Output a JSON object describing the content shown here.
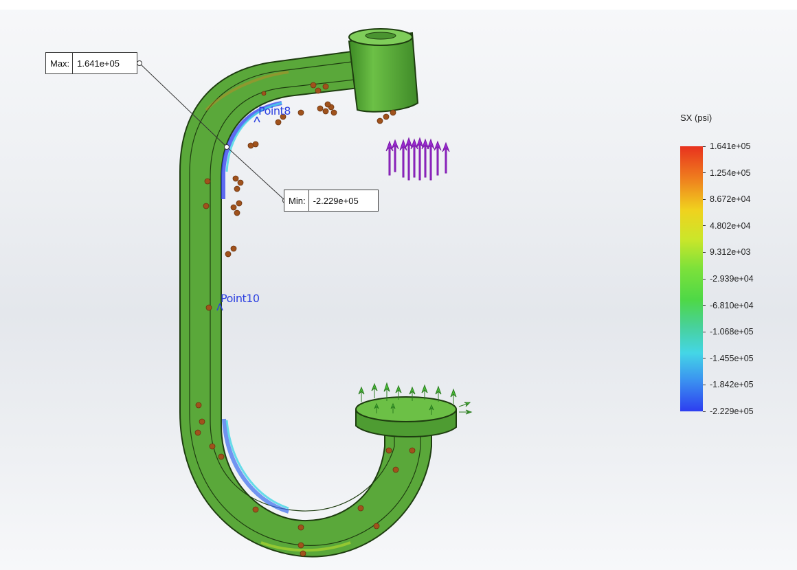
{
  "probes": {
    "max": {
      "label": "Max:",
      "value": "1.641e+05"
    },
    "min": {
      "label": "Min:",
      "value": "-2.229e+05"
    }
  },
  "points": {
    "point8": "Point8",
    "point10": "Point10"
  },
  "legend": {
    "title": "SX (psi)",
    "ticks": [
      "1.641e+05",
      "1.254e+05",
      "8.672e+04",
      "4.802e+04",
      "9.312e+03",
      "-2.939e+04",
      "-6.810e+04",
      "-1.068e+05",
      "-1.455e+05",
      "-1.842e+05",
      "-2.229e+05"
    ],
    "colors": {
      "max": "#e8321e",
      "mid": "#4ed847",
      "min": "#2d3ef0"
    }
  },
  "model": {
    "body_color": "#5aa83a",
    "edge_color": "#1e3d10",
    "load_arrow_color": "#9a2ad0",
    "fixture_arrow_color": "#4bbf3a",
    "force_marker_color": "#a0521c",
    "icons": [
      "load-arrows",
      "fixture-arrows",
      "force-markers"
    ]
  }
}
